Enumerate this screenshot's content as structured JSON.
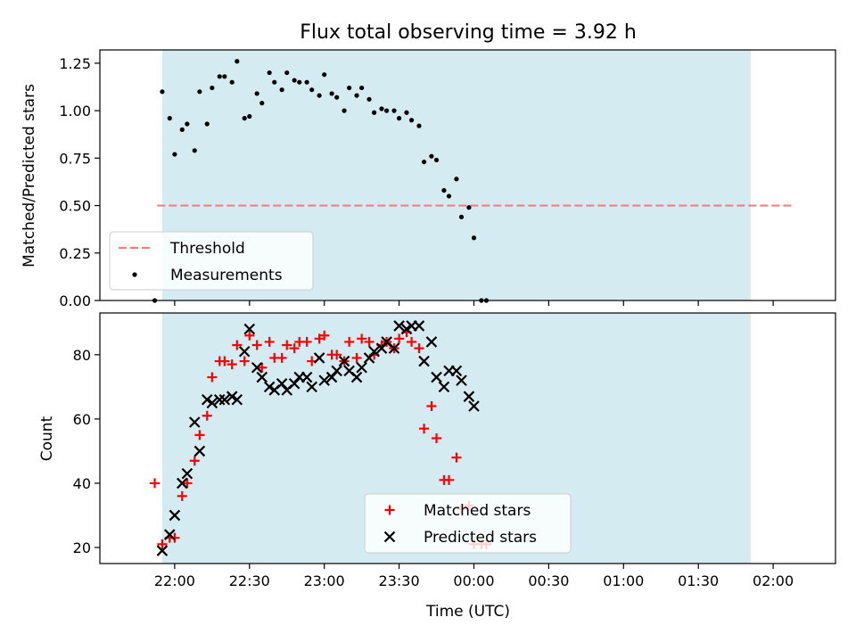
{
  "chart_data": [
    {
      "type": "scatter",
      "title": "Flux total observing time = 3.92 h",
      "xlabel": "",
      "ylabel": "Matched/Predicted stars",
      "xlim": [
        "21:30",
        "02:25"
      ],
      "ylim": [
        0,
        1.32
      ],
      "yticks": [
        "0.00",
        "0.25",
        "0.50",
        "0.75",
        "1.00",
        "1.25"
      ],
      "grid": false,
      "shaded_interval": [
        "21:55",
        "01:51"
      ],
      "legend": {
        "placement": "lower-left",
        "entries": [
          "Threshold",
          "Measurements"
        ]
      },
      "threshold": {
        "name": "Threshold",
        "value": 0.5,
        "x": [
          "21:53",
          "02:08"
        ],
        "color": "#f08080"
      },
      "series": [
        {
          "name": "Measurements",
          "color": "#000000",
          "points": [
            [
              "21:52",
              0.0
            ],
            [
              "21:55",
              1.1
            ],
            [
              "21:58",
              0.96
            ],
            [
              "22:00",
              0.77
            ],
            [
              "22:03",
              0.9
            ],
            [
              "22:05",
              0.93
            ],
            [
              "22:08",
              0.79
            ],
            [
              "22:10",
              1.1
            ],
            [
              "22:13",
              0.93
            ],
            [
              "22:15",
              1.12
            ],
            [
              "22:18",
              1.18
            ],
            [
              "22:20",
              1.18
            ],
            [
              "22:23",
              1.15
            ],
            [
              "22:25",
              1.26
            ],
            [
              "22:28",
              0.96
            ],
            [
              "22:30",
              0.97
            ],
            [
              "22:33",
              1.09
            ],
            [
              "22:35",
              1.04
            ],
            [
              "22:38",
              1.2
            ],
            [
              "22:40",
              1.15
            ],
            [
              "22:43",
              1.11
            ],
            [
              "22:45",
              1.2
            ],
            [
              "22:48",
              1.16
            ],
            [
              "22:50",
              1.15
            ],
            [
              "22:53",
              1.15
            ],
            [
              "22:55",
              1.11
            ],
            [
              "22:58",
              1.08
            ],
            [
              "23:00",
              1.19
            ],
            [
              "23:03",
              1.09
            ],
            [
              "23:05",
              1.07
            ],
            [
              "23:08",
              1.0
            ],
            [
              "23:10",
              1.12
            ],
            [
              "23:13",
              1.08
            ],
            [
              "23:15",
              1.12
            ],
            [
              "23:18",
              1.06
            ],
            [
              "23:20",
              0.99
            ],
            [
              "23:23",
              1.01
            ],
            [
              "23:25",
              1.0
            ],
            [
              "23:28",
              1.0
            ],
            [
              "23:30",
              0.96
            ],
            [
              "23:33",
              0.99
            ],
            [
              "23:35",
              0.95
            ],
            [
              "23:38",
              0.92
            ],
            [
              "23:40",
              0.73
            ],
            [
              "23:43",
              0.76
            ],
            [
              "23:45",
              0.74
            ],
            [
              "23:48",
              0.58
            ],
            [
              "23:50",
              0.55
            ],
            [
              "23:53",
              0.64
            ],
            [
              "23:55",
              0.44
            ],
            [
              "23:58",
              0.49
            ],
            [
              "00:00",
              0.33
            ],
            [
              "00:03",
              0.0
            ],
            [
              "00:05",
              0.0
            ]
          ]
        }
      ]
    },
    {
      "type": "scatter",
      "title": "",
      "xlabel": "Time (UTC)",
      "ylabel": "Count",
      "xlim": [
        "21:30",
        "02:25"
      ],
      "ylim": [
        15,
        93
      ],
      "yticks": [
        "20",
        "40",
        "60",
        "80"
      ],
      "xticks": [
        "22:00",
        "22:30",
        "23:00",
        "23:30",
        "00:00",
        "00:30",
        "01:00",
        "01:30",
        "02:00"
      ],
      "grid": false,
      "shaded_interval": [
        "21:55",
        "01:51"
      ],
      "legend": {
        "placement": "lower-center",
        "entries": [
          "Matched stars",
          "Predicted stars"
        ]
      },
      "series": [
        {
          "name": "Matched stars",
          "marker": "plus",
          "color": "#ff0000",
          "points": [
            [
              "21:52",
              40
            ],
            [
              "21:55",
              21
            ],
            [
              "21:58",
              23
            ],
            [
              "22:00",
              23
            ],
            [
              "22:03",
              36
            ],
            [
              "22:05",
              40
            ],
            [
              "22:08",
              47
            ],
            [
              "22:10",
              55
            ],
            [
              "22:13",
              61
            ],
            [
              "22:15",
              73
            ],
            [
              "22:18",
              78
            ],
            [
              "22:20",
              78
            ],
            [
              "22:23",
              77
            ],
            [
              "22:25",
              83
            ],
            [
              "22:28",
              78
            ],
            [
              "22:30",
              86
            ],
            [
              "22:33",
              83
            ],
            [
              "22:35",
              76
            ],
            [
              "22:38",
              84
            ],
            [
              "22:40",
              79
            ],
            [
              "22:43",
              79
            ],
            [
              "22:45",
              83
            ],
            [
              "22:48",
              82
            ],
            [
              "22:50",
              84
            ],
            [
              "22:53",
              84
            ],
            [
              "22:55",
              78
            ],
            [
              "22:58",
              85
            ],
            [
              "23:00",
              86
            ],
            [
              "23:03",
              80
            ],
            [
              "23:05",
              80
            ],
            [
              "23:08",
              78
            ],
            [
              "23:10",
              84
            ],
            [
              "23:13",
              79
            ],
            [
              "23:15",
              85
            ],
            [
              "23:18",
              84
            ],
            [
              "23:20",
              80
            ],
            [
              "23:23",
              83
            ],
            [
              "23:25",
              84
            ],
            [
              "23:28",
              82
            ],
            [
              "23:30",
              85
            ],
            [
              "23:33",
              87
            ],
            [
              "23:35",
              84
            ],
            [
              "23:38",
              82
            ],
            [
              "23:40",
              57
            ],
            [
              "23:43",
              64
            ],
            [
              "23:45",
              54
            ],
            [
              "23:48",
              41
            ],
            [
              "23:50",
              41
            ],
            [
              "23:53",
              48
            ],
            [
              "23:55",
              32
            ],
            [
              "23:58",
              33
            ],
            [
              "00:00",
              21
            ],
            [
              "00:03",
              21
            ],
            [
              "00:05",
              21
            ]
          ]
        },
        {
          "name": "Predicted stars",
          "marker": "x",
          "color": "#000000",
          "points": [
            [
              "21:55",
              19
            ],
            [
              "21:58",
              24
            ],
            [
              "22:00",
              30
            ],
            [
              "22:03",
              40
            ],
            [
              "22:05",
              43
            ],
            [
              "22:08",
              59
            ],
            [
              "22:10",
              50
            ],
            [
              "22:13",
              66
            ],
            [
              "22:15",
              65
            ],
            [
              "22:18",
              66
            ],
            [
              "22:20",
              66
            ],
            [
              "22:23",
              67
            ],
            [
              "22:25",
              66
            ],
            [
              "22:28",
              81
            ],
            [
              "22:30",
              88
            ],
            [
              "22:33",
              76
            ],
            [
              "22:35",
              73
            ],
            [
              "22:38",
              70
            ],
            [
              "22:40",
              69
            ],
            [
              "22:43",
              71
            ],
            [
              "22:45",
              69
            ],
            [
              "22:48",
              71
            ],
            [
              "22:50",
              73
            ],
            [
              "22:53",
              73
            ],
            [
              "22:55",
              70
            ],
            [
              "22:58",
              79
            ],
            [
              "23:00",
              72
            ],
            [
              "23:03",
              73
            ],
            [
              "23:05",
              75
            ],
            [
              "23:08",
              78
            ],
            [
              "23:10",
              75
            ],
            [
              "23:13",
              73
            ],
            [
              "23:15",
              76
            ],
            [
              "23:18",
              79
            ],
            [
              "23:20",
              81
            ],
            [
              "23:23",
              82
            ],
            [
              "23:25",
              84
            ],
            [
              "23:28",
              82
            ],
            [
              "23:30",
              89
            ],
            [
              "23:33",
              88
            ],
            [
              "23:35",
              89
            ],
            [
              "23:38",
              89
            ],
            [
              "23:40",
              78
            ],
            [
              "23:43",
              84
            ],
            [
              "23:45",
              73
            ],
            [
              "23:48",
              70
            ],
            [
              "23:50",
              75
            ],
            [
              "23:53",
              75
            ],
            [
              "23:55",
              72
            ],
            [
              "23:58",
              67
            ],
            [
              "00:00",
              64
            ]
          ]
        }
      ]
    }
  ]
}
